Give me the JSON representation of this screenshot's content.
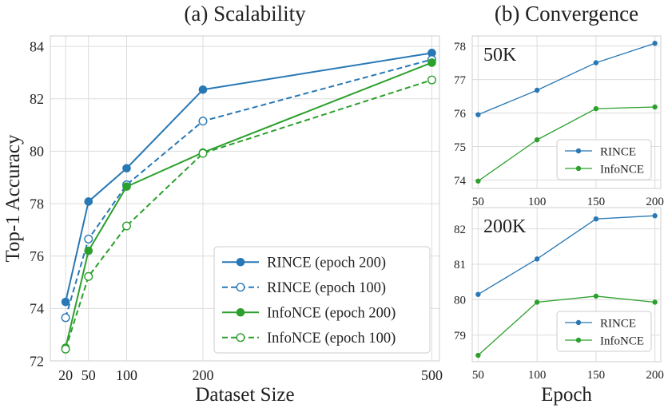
{
  "colors": {
    "rince": "#2878b5",
    "infonce": "#2ca02c"
  },
  "chart_data": [
    {
      "type": "line",
      "title": "(a) Scalability",
      "xlabel": "Dataset Size",
      "ylabel": "Top-1 Accuracy",
      "x": [
        20,
        50,
        100,
        200,
        500
      ],
      "xticks": [
        "20",
        "50",
        "100",
        "200",
        "500"
      ],
      "yticks": [
        "72",
        "74",
        "76",
        "78",
        "80",
        "82",
        "84"
      ],
      "xlim": [
        0,
        510
      ],
      "ylim": [
        72,
        84.4
      ],
      "grid": true,
      "legend_position": "lower-right",
      "series": [
        {
          "name": "RINCE (epoch 200)",
          "color_key": "rince",
          "style": "solid",
          "marker": "filled",
          "values": [
            74.25,
            78.08,
            79.35,
            82.35,
            83.75
          ]
        },
        {
          "name": "RINCE (epoch 100)",
          "color_key": "rince",
          "style": "dashed",
          "marker": "open",
          "values": [
            73.65,
            76.65,
            78.72,
            81.15,
            83.5
          ]
        },
        {
          "name": "InfoNCE (epoch 200)",
          "color_key": "infonce",
          "style": "solid",
          "marker": "filled",
          "values": [
            72.5,
            76.2,
            78.65,
            79.95,
            83.38
          ]
        },
        {
          "name": "InfoNCE (epoch 100)",
          "color_key": "infonce",
          "style": "dashed",
          "marker": "open",
          "values": [
            72.45,
            75.22,
            77.15,
            79.92,
            82.72
          ]
        }
      ]
    },
    {
      "type": "line",
      "title": "(b) Convergence",
      "annotation": "50K",
      "x": [
        50,
        100,
        150,
        200
      ],
      "xticks": [
        "50",
        "100",
        "150",
        "200"
      ],
      "yticks": [
        "74",
        "75",
        "76",
        "77",
        "78"
      ],
      "xlim": [
        45,
        205
      ],
      "ylim": [
        73.75,
        78.3
      ],
      "grid": true,
      "legend_position": "lower-right",
      "series": [
        {
          "name": "RINCE",
          "color_key": "rince",
          "values": [
            75.95,
            76.68,
            77.5,
            78.08
          ]
        },
        {
          "name": "InfoNCE",
          "color_key": "infonce",
          "values": [
            73.97,
            75.2,
            76.13,
            76.18
          ]
        }
      ]
    },
    {
      "type": "line",
      "xlabel": "Epoch",
      "annotation": "200K",
      "x": [
        50,
        100,
        150,
        200
      ],
      "xticks": [
        "50",
        "100",
        "150",
        "200"
      ],
      "yticks": [
        "79",
        "80",
        "81",
        "82"
      ],
      "xlim": [
        45,
        205
      ],
      "ylim": [
        78.25,
        82.6
      ],
      "grid": true,
      "legend_position": "lower-right",
      "series": [
        {
          "name": "RINCE",
          "color_key": "rince",
          "values": [
            80.15,
            81.15,
            82.28,
            82.37
          ]
        },
        {
          "name": "InfoNCE",
          "color_key": "infonce",
          "values": [
            78.43,
            79.93,
            80.1,
            79.93
          ]
        }
      ]
    }
  ]
}
